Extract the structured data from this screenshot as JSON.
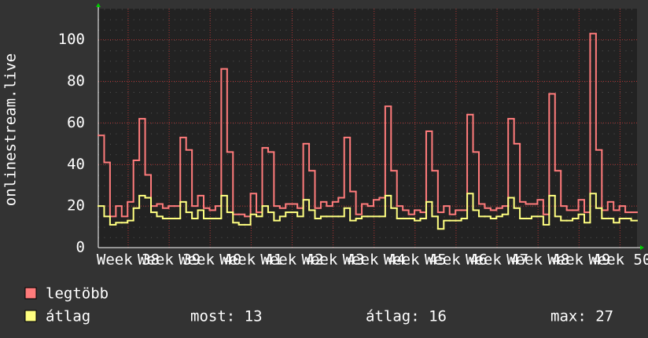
{
  "chart_data": {
    "type": "step-line",
    "y_label": "onlinestream.live",
    "ylim": [
      0,
      115
    ],
    "yticks": [
      0,
      20,
      40,
      60,
      80,
      100
    ],
    "xlim": [
      0,
      92
    ],
    "xticks": [
      {
        "value": 5.1,
        "label": "Week 38"
      },
      {
        "value": 12.1,
        "label": "Week 39"
      },
      {
        "value": 19.1,
        "label": "Week 40"
      },
      {
        "value": 26.1,
        "label": "Week 41"
      },
      {
        "value": 33.1,
        "label": "Week 42"
      },
      {
        "value": 40.1,
        "label": "Week 43"
      },
      {
        "value": 47.1,
        "label": "Week 44"
      },
      {
        "value": 54.1,
        "label": "Week 45"
      },
      {
        "value": 61.1,
        "label": "Week 46"
      },
      {
        "value": 68.1,
        "label": "Week 47"
      },
      {
        "value": 75.1,
        "label": "Week 48"
      },
      {
        "value": 82.1,
        "label": "Week 49"
      },
      {
        "value": 89.1,
        "label": "Week 50"
      }
    ],
    "grid": true,
    "series": [
      {
        "name": "legtöbb",
        "color": "#ff7b7b",
        "values": [
          54,
          41,
          15,
          20,
          15,
          22,
          42,
          62,
          35,
          20,
          21,
          19,
          20,
          20,
          53,
          47,
          20,
          25,
          19,
          18,
          20,
          86,
          46,
          16,
          16,
          15,
          26,
          17,
          48,
          46,
          20,
          19,
          21,
          21,
          19,
          50,
          37,
          19,
          22,
          20,
          22,
          24,
          53,
          27,
          16,
          21,
          20,
          23,
          24,
          68,
          37,
          20,
          18,
          16,
          18,
          17,
          56,
          37,
          17,
          20,
          16,
          18,
          18,
          64,
          46,
          21,
          19,
          18,
          19,
          20,
          62,
          50,
          22,
          21,
          21,
          23,
          16,
          74,
          37,
          20,
          18,
          18,
          23,
          17,
          103,
          47,
          18,
          22,
          18,
          20,
          17,
          17
        ]
      },
      {
        "name": "átlag",
        "color": "#ffff80",
        "values": [
          20,
          15,
          11,
          12,
          12,
          13,
          19,
          25,
          24,
          17,
          15,
          14,
          14,
          14,
          22,
          17,
          14,
          18,
          14,
          14,
          14,
          25,
          17,
          12,
          11,
          11,
          16,
          15,
          20,
          17,
          13,
          15,
          17,
          17,
          15,
          23,
          18,
          14,
          15,
          15,
          15,
          15,
          19,
          13,
          14,
          15,
          15,
          15,
          15,
          25,
          19,
          14,
          14,
          14,
          13,
          14,
          22,
          15,
          9,
          13,
          13,
          13,
          14,
          26,
          18,
          15,
          15,
          14,
          15,
          16,
          24,
          19,
          14,
          14,
          15,
          15,
          11,
          25,
          15,
          13,
          13,
          14,
          16,
          12,
          26,
          19,
          14,
          14,
          12,
          14,
          14,
          13
        ]
      }
    ],
    "stats": [
      "most: 13",
      "átlag: 16",
      "max: 27"
    ]
  }
}
